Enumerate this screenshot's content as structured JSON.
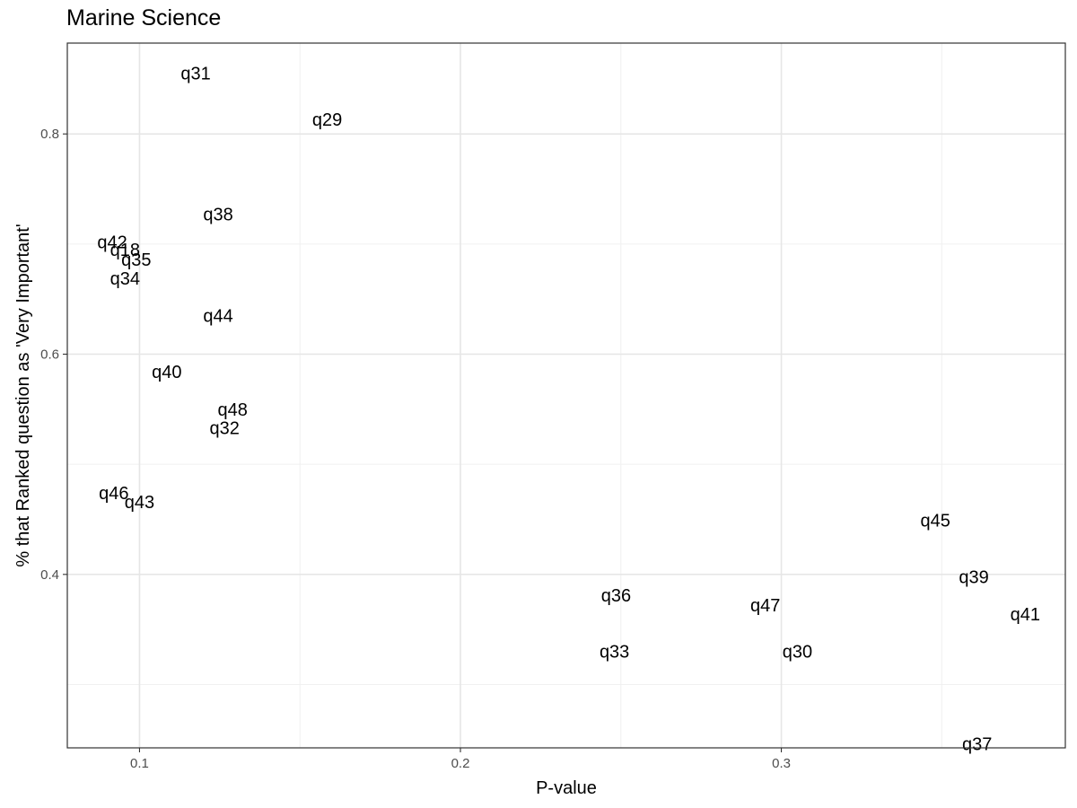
{
  "chart_data": {
    "type": "scatter",
    "title": "Marine Science",
    "xlabel": "P-value",
    "ylabel": "% that Ranked question as 'Very Important'",
    "xlim": [
      0.0775,
      0.3885
    ],
    "ylim": [
      0.2425,
      0.8825
    ],
    "xticks": [
      0.1,
      0.2,
      0.3
    ],
    "xtick_labels": [
      "0.1",
      "0.2",
      "0.3"
    ],
    "yticks": [
      0.4,
      0.6,
      0.8
    ],
    "ytick_labels": [
      "0.4",
      "0.6",
      "0.8"
    ],
    "grid": true,
    "marker": "text-label",
    "points": [
      {
        "label": "q31",
        "x": 0.1175,
        "y": 0.855
      },
      {
        "label": "q29",
        "x": 0.1585,
        "y": 0.813
      },
      {
        "label": "q38",
        "x": 0.1245,
        "y": 0.727
      },
      {
        "label": "q42",
        "x": 0.0915,
        "y": 0.702
      },
      {
        "label": "q18",
        "x": 0.0955,
        "y": 0.695
      },
      {
        "label": "q35",
        "x": 0.099,
        "y": 0.686
      },
      {
        "label": "q34",
        "x": 0.0955,
        "y": 0.669
      },
      {
        "label": "q44",
        "x": 0.1245,
        "y": 0.635
      },
      {
        "label": "q40",
        "x": 0.1085,
        "y": 0.584
      },
      {
        "label": "q48",
        "x": 0.129,
        "y": 0.55
      },
      {
        "label": "q32",
        "x": 0.1265,
        "y": 0.533
      },
      {
        "label": "q46",
        "x": 0.092,
        "y": 0.474
      },
      {
        "label": "q43",
        "x": 0.1,
        "y": 0.466
      },
      {
        "label": "q45",
        "x": 0.348,
        "y": 0.449
      },
      {
        "label": "q39",
        "x": 0.36,
        "y": 0.398
      },
      {
        "label": "q36",
        "x": 0.2485,
        "y": 0.381
      },
      {
        "label": "q47",
        "x": 0.295,
        "y": 0.372
      },
      {
        "label": "q41",
        "x": 0.376,
        "y": 0.364
      },
      {
        "label": "q33",
        "x": 0.248,
        "y": 0.33
      },
      {
        "label": "q30",
        "x": 0.305,
        "y": 0.33
      },
      {
        "label": "q37",
        "x": 0.361,
        "y": 0.246
      }
    ]
  }
}
